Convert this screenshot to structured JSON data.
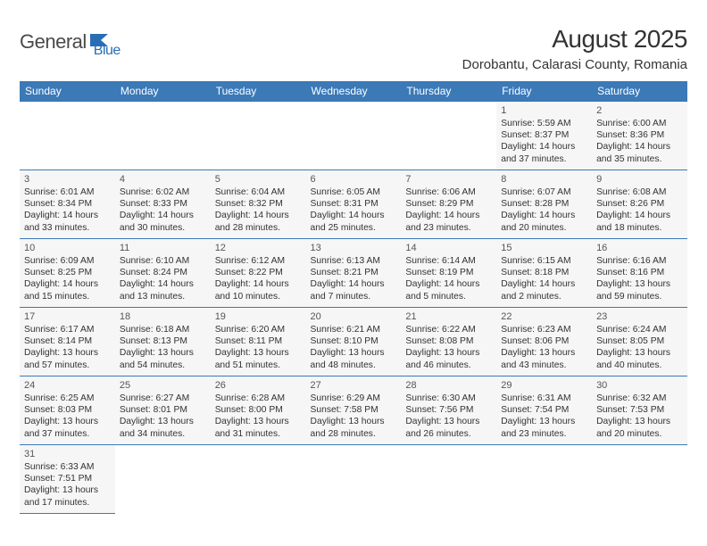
{
  "logo": {
    "part1": "General",
    "part2": "Blue",
    "color1": "#4a4a4a",
    "color2": "#2a6db5",
    "shape_fill": "#2a6db5"
  },
  "title": "August 2025",
  "location": "Dorobantu, Calarasi County, Romania",
  "header_bg": "#3b79b7",
  "header_fg": "#ffffff",
  "cell_border": "#3b79b7",
  "cell_bg": "#f6f6f6",
  "page_bg": "#ffffff",
  "weekdays": [
    "Sunday",
    "Monday",
    "Tuesday",
    "Wednesday",
    "Thursday",
    "Friday",
    "Saturday"
  ],
  "weeks": [
    [
      null,
      null,
      null,
      null,
      null,
      {
        "n": "1",
        "sr": "Sunrise: 5:59 AM",
        "ss": "Sunset: 8:37 PM",
        "d1": "Daylight: 14 hours",
        "d2": "and 37 minutes."
      },
      {
        "n": "2",
        "sr": "Sunrise: 6:00 AM",
        "ss": "Sunset: 8:36 PM",
        "d1": "Daylight: 14 hours",
        "d2": "and 35 minutes."
      }
    ],
    [
      {
        "n": "3",
        "sr": "Sunrise: 6:01 AM",
        "ss": "Sunset: 8:34 PM",
        "d1": "Daylight: 14 hours",
        "d2": "and 33 minutes."
      },
      {
        "n": "4",
        "sr": "Sunrise: 6:02 AM",
        "ss": "Sunset: 8:33 PM",
        "d1": "Daylight: 14 hours",
        "d2": "and 30 minutes."
      },
      {
        "n": "5",
        "sr": "Sunrise: 6:04 AM",
        "ss": "Sunset: 8:32 PM",
        "d1": "Daylight: 14 hours",
        "d2": "and 28 minutes."
      },
      {
        "n": "6",
        "sr": "Sunrise: 6:05 AM",
        "ss": "Sunset: 8:31 PM",
        "d1": "Daylight: 14 hours",
        "d2": "and 25 minutes."
      },
      {
        "n": "7",
        "sr": "Sunrise: 6:06 AM",
        "ss": "Sunset: 8:29 PM",
        "d1": "Daylight: 14 hours",
        "d2": "and 23 minutes."
      },
      {
        "n": "8",
        "sr": "Sunrise: 6:07 AM",
        "ss": "Sunset: 8:28 PM",
        "d1": "Daylight: 14 hours",
        "d2": "and 20 minutes."
      },
      {
        "n": "9",
        "sr": "Sunrise: 6:08 AM",
        "ss": "Sunset: 8:26 PM",
        "d1": "Daylight: 14 hours",
        "d2": "and 18 minutes."
      }
    ],
    [
      {
        "n": "10",
        "sr": "Sunrise: 6:09 AM",
        "ss": "Sunset: 8:25 PM",
        "d1": "Daylight: 14 hours",
        "d2": "and 15 minutes."
      },
      {
        "n": "11",
        "sr": "Sunrise: 6:10 AM",
        "ss": "Sunset: 8:24 PM",
        "d1": "Daylight: 14 hours",
        "d2": "and 13 minutes."
      },
      {
        "n": "12",
        "sr": "Sunrise: 6:12 AM",
        "ss": "Sunset: 8:22 PM",
        "d1": "Daylight: 14 hours",
        "d2": "and 10 minutes."
      },
      {
        "n": "13",
        "sr": "Sunrise: 6:13 AM",
        "ss": "Sunset: 8:21 PM",
        "d1": "Daylight: 14 hours",
        "d2": "and 7 minutes."
      },
      {
        "n": "14",
        "sr": "Sunrise: 6:14 AM",
        "ss": "Sunset: 8:19 PM",
        "d1": "Daylight: 14 hours",
        "d2": "and 5 minutes."
      },
      {
        "n": "15",
        "sr": "Sunrise: 6:15 AM",
        "ss": "Sunset: 8:18 PM",
        "d1": "Daylight: 14 hours",
        "d2": "and 2 minutes."
      },
      {
        "n": "16",
        "sr": "Sunrise: 6:16 AM",
        "ss": "Sunset: 8:16 PM",
        "d1": "Daylight: 13 hours",
        "d2": "and 59 minutes."
      }
    ],
    [
      {
        "n": "17",
        "sr": "Sunrise: 6:17 AM",
        "ss": "Sunset: 8:14 PM",
        "d1": "Daylight: 13 hours",
        "d2": "and 57 minutes."
      },
      {
        "n": "18",
        "sr": "Sunrise: 6:18 AM",
        "ss": "Sunset: 8:13 PM",
        "d1": "Daylight: 13 hours",
        "d2": "and 54 minutes."
      },
      {
        "n": "19",
        "sr": "Sunrise: 6:20 AM",
        "ss": "Sunset: 8:11 PM",
        "d1": "Daylight: 13 hours",
        "d2": "and 51 minutes."
      },
      {
        "n": "20",
        "sr": "Sunrise: 6:21 AM",
        "ss": "Sunset: 8:10 PM",
        "d1": "Daylight: 13 hours",
        "d2": "and 48 minutes."
      },
      {
        "n": "21",
        "sr": "Sunrise: 6:22 AM",
        "ss": "Sunset: 8:08 PM",
        "d1": "Daylight: 13 hours",
        "d2": "and 46 minutes."
      },
      {
        "n": "22",
        "sr": "Sunrise: 6:23 AM",
        "ss": "Sunset: 8:06 PM",
        "d1": "Daylight: 13 hours",
        "d2": "and 43 minutes."
      },
      {
        "n": "23",
        "sr": "Sunrise: 6:24 AM",
        "ss": "Sunset: 8:05 PM",
        "d1": "Daylight: 13 hours",
        "d2": "and 40 minutes."
      }
    ],
    [
      {
        "n": "24",
        "sr": "Sunrise: 6:25 AM",
        "ss": "Sunset: 8:03 PM",
        "d1": "Daylight: 13 hours",
        "d2": "and 37 minutes."
      },
      {
        "n": "25",
        "sr": "Sunrise: 6:27 AM",
        "ss": "Sunset: 8:01 PM",
        "d1": "Daylight: 13 hours",
        "d2": "and 34 minutes."
      },
      {
        "n": "26",
        "sr": "Sunrise: 6:28 AM",
        "ss": "Sunset: 8:00 PM",
        "d1": "Daylight: 13 hours",
        "d2": "and 31 minutes."
      },
      {
        "n": "27",
        "sr": "Sunrise: 6:29 AM",
        "ss": "Sunset: 7:58 PM",
        "d1": "Daylight: 13 hours",
        "d2": "and 28 minutes."
      },
      {
        "n": "28",
        "sr": "Sunrise: 6:30 AM",
        "ss": "Sunset: 7:56 PM",
        "d1": "Daylight: 13 hours",
        "d2": "and 26 minutes."
      },
      {
        "n": "29",
        "sr": "Sunrise: 6:31 AM",
        "ss": "Sunset: 7:54 PM",
        "d1": "Daylight: 13 hours",
        "d2": "and 23 minutes."
      },
      {
        "n": "30",
        "sr": "Sunrise: 6:32 AM",
        "ss": "Sunset: 7:53 PM",
        "d1": "Daylight: 13 hours",
        "d2": "and 20 minutes."
      }
    ],
    [
      {
        "n": "31",
        "sr": "Sunrise: 6:33 AM",
        "ss": "Sunset: 7:51 PM",
        "d1": "Daylight: 13 hours",
        "d2": "and 17 minutes."
      },
      null,
      null,
      null,
      null,
      null,
      null
    ]
  ]
}
